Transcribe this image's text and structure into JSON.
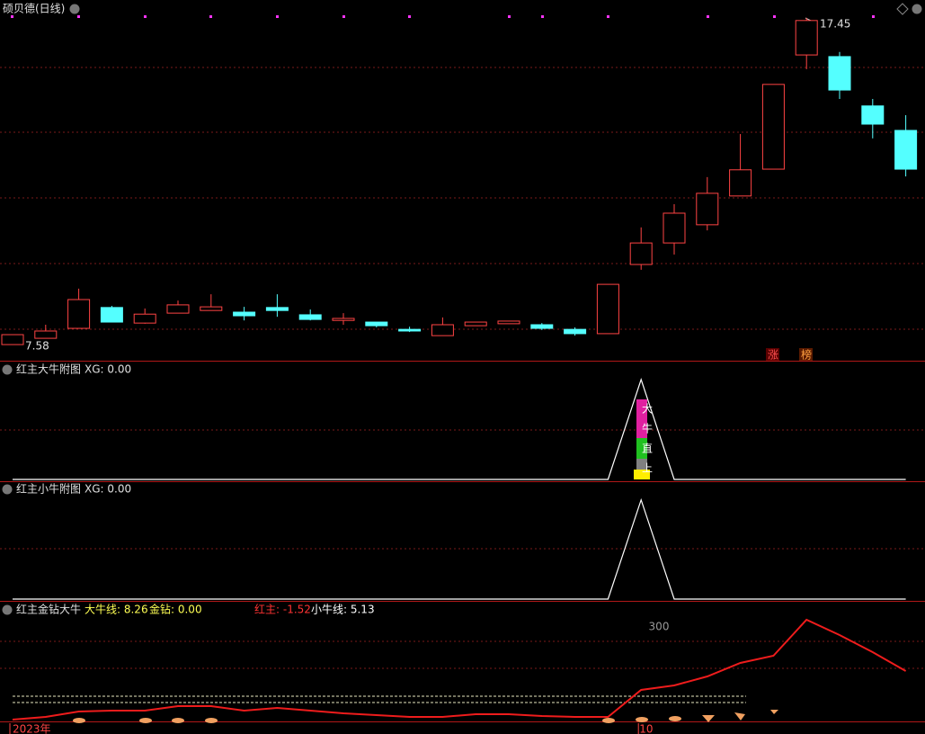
{
  "chart_data": [
    {
      "type": "candlestick",
      "title": "硕贝德(日线)",
      "categories": [
        "2023年",
        null,
        null,
        null,
        null,
        null,
        null,
        null,
        null,
        null,
        null,
        null,
        null,
        null,
        null,
        null,
        null,
        null,
        null,
        "10",
        null,
        null,
        null,
        null,
        null,
        null,
        null,
        null
      ],
      "open": [
        7.58,
        7.77,
        8.07,
        8.7,
        8.23,
        8.53,
        8.61,
        8.56,
        8.7,
        8.48,
        8.31,
        8.26,
        8.04,
        7.85,
        8.15,
        8.21,
        8.18,
        8.04,
        7.91,
        10.0,
        10.65,
        11.2,
        12.07,
        12.88,
        16.33,
        16.28,
        14.79,
        14.05
      ],
      "high": [
        7.88,
        8.18,
        9.27,
        8.75,
        8.67,
        8.91,
        9.1,
        8.72,
        9.1,
        8.64,
        8.53,
        8.26,
        8.12,
        8.4,
        8.26,
        8.29,
        8.23,
        8.1,
        9.4,
        11.12,
        11.82,
        12.64,
        13.94,
        15.44,
        17.45,
        16.42,
        15.0,
        14.51
      ],
      "low": [
        7.58,
        7.77,
        8.07,
        8.26,
        8.21,
        8.53,
        8.61,
        8.31,
        8.42,
        8.31,
        8.18,
        8.1,
        7.96,
        7.85,
        8.15,
        8.21,
        8.02,
        7.85,
        7.91,
        9.84,
        10.3,
        11.03,
        12.07,
        12.88,
        15.9,
        15.0,
        13.81,
        12.66
      ],
      "close": [
        7.88,
        7.99,
        8.94,
        8.26,
        8.5,
        8.78,
        8.72,
        8.45,
        8.61,
        8.34,
        8.37,
        8.15,
        7.99,
        8.18,
        8.26,
        8.29,
        8.07,
        7.91,
        9.4,
        10.65,
        11.55,
        12.15,
        12.86,
        15.44,
        17.37,
        15.27,
        14.24,
        12.88
      ],
      "up_color": "#ff4444",
      "down_color": "#54ffff",
      "ylim": [
        7.12,
        17.99
      ],
      "high_label": "17.45",
      "low_label": "7.58",
      "tags": [
        "涨",
        "榜"
      ]
    },
    {
      "type": "line",
      "title": "红主大牛附图",
      "readout": "XG: 0.00",
      "values": [
        0,
        0,
        0,
        0,
        0,
        0,
        0,
        0,
        0,
        0,
        0,
        0,
        0,
        0,
        0,
        0,
        0,
        0,
        0,
        1,
        0,
        0,
        0,
        0,
        0,
        0,
        0,
        0
      ],
      "color": "#ffffff",
      "ylim": [
        0,
        1.17
      ],
      "signal_text": [
        "大",
        "牛",
        "直",
        "上"
      ]
    },
    {
      "type": "line",
      "title": "红主小牛附图",
      "readout": "XG: 0.00",
      "values": [
        0,
        0,
        0,
        0,
        0,
        0,
        0,
        0,
        0,
        0,
        0,
        0,
        0,
        0,
        0,
        0,
        0,
        0,
        0,
        1,
        0,
        0,
        0,
        0,
        0,
        0,
        0,
        0
      ],
      "color": "#ffffff",
      "ylim": [
        0,
        1.17
      ]
    },
    {
      "type": "line",
      "title": "红主金钻大牛",
      "readouts": [
        {
          "text": "大牛线: 8.26",
          "color": "#ffff54"
        },
        {
          "text": "金钻: 0.00",
          "color": "#ffff54"
        },
        {
          "text": "红主: -1.52",
          "color": "#ff3333"
        },
        {
          "text": "小牛线: 5.13",
          "color": "#ffffff"
        }
      ],
      "level_label": "300",
      "values": [
        5,
        8,
        14,
        15,
        15,
        20,
        20,
        15,
        18,
        15,
        12,
        10,
        8,
        8,
        11,
        11,
        9,
        8,
        8,
        38,
        43,
        53,
        68,
        76,
        116,
        99,
        80,
        59
      ],
      "color": "#ee1c1c",
      "ylim": [
        0,
        135
      ]
    }
  ]
}
